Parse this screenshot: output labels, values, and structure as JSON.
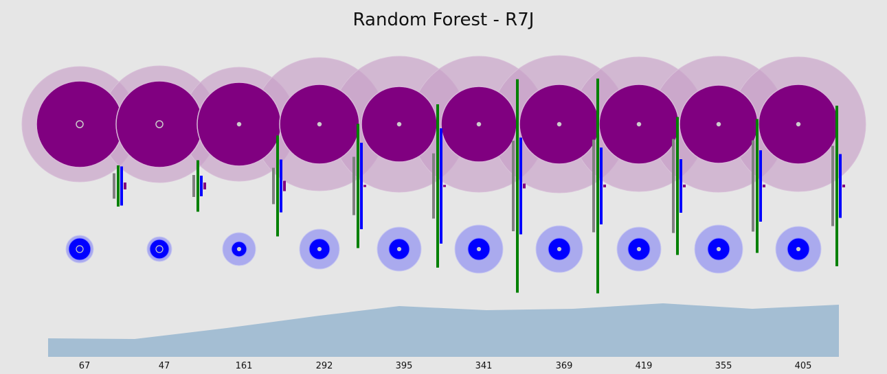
{
  "chart_data": {
    "type": "composite",
    "title": "Random Forest - R7J",
    "colors": {
      "background": "#e6e6e6",
      "purple": "#800080",
      "purple_halo": "#c8a0c8",
      "blue": "#0000ff",
      "blue_halo": "#aaaaee",
      "green": "#008000",
      "gray": "#808080",
      "area": "#a4bed3"
    },
    "categories": [
      "67",
      "47",
      "161",
      "292",
      "395",
      "341",
      "369",
      "419",
      "355",
      "405"
    ],
    "series": [
      {
        "values": [
          63,
          63,
          61,
          58,
          55,
          55,
          58,
          58,
          57,
          58
        ],
        "color": "#800080"
      },
      {
        "values": [
          84,
          85,
          83,
          97,
          99,
          99,
          100,
          98,
          99,
          98
        ],
        "color": "#c8a0c8"
      },
      {
        "values": [
          2,
          2,
          1,
          1,
          1,
          1,
          1,
          1,
          1,
          1
        ],
        "color": "#cccccc"
      },
      {
        "values": [
          20,
          18,
          24,
          29,
          32,
          35,
          34,
          32,
          35,
          33
        ],
        "color": "#aaaaee"
      },
      {
        "values": [
          16,
          14,
          11,
          15,
          15,
          16,
          16,
          16,
          16,
          16
        ],
        "color": "#0000ff"
      },
      {
        "values": [
          60,
          75,
          147,
          181,
          238,
          311,
          313,
          201,
          195,
          234
        ],
        "color": "#008000"
      },
      {
        "values": [
          57,
          30,
          77,
          126,
          168,
          141,
          112,
          78,
          104,
          93
        ],
        "color": "#0000ff"
      },
      {
        "values": [
          37,
          32,
          53,
          85,
          95,
          132,
          135,
          137,
          133,
          117
        ],
        "color": "#808080"
      },
      {
        "values": [
          10,
          10,
          15,
          3,
          3,
          7,
          4,
          4,
          4,
          4
        ],
        "color": "#800080"
      },
      {
        "values": [
          27,
          26,
          42,
          60,
          74,
          68,
          70,
          78,
          70,
          76
        ],
        "color": "#a4bed3"
      }
    ]
  }
}
